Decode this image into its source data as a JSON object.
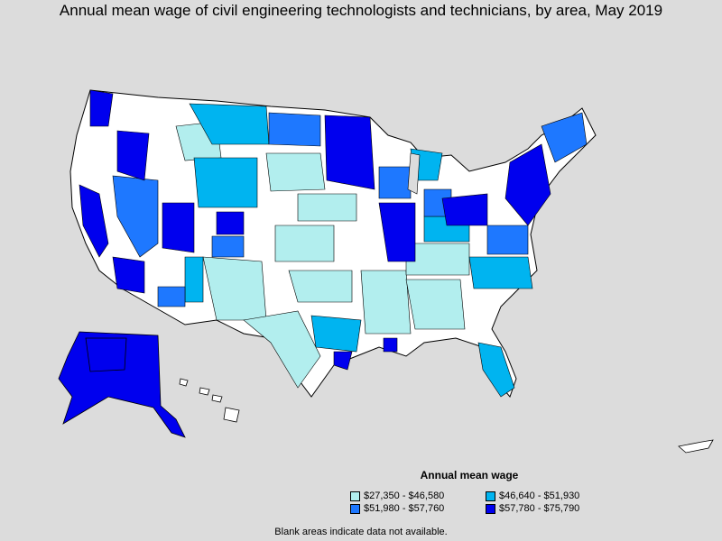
{
  "title": "Annual mean wage of civil engineering technologists and technicians, by area, May 2019",
  "legend": {
    "title": "Annual mean wage",
    "items": [
      {
        "label": "$27,350 - $46,580",
        "color": "#b2eeee"
      },
      {
        "label": "$46,640 - $51,930",
        "color": "#00b4f0"
      },
      {
        "label": "$51,980 - $57,760",
        "color": "#1e78ff"
      },
      {
        "label": "$57,780 - $75,790",
        "color": "#0000ee"
      }
    ]
  },
  "note": "Blank areas indicate data not available.",
  "colors": {
    "background": "#dcdcdc",
    "blank": "#ffffff",
    "tier1": "#b2eeee",
    "tier2": "#00b4f0",
    "tier3": "#1e78ff",
    "tier4": "#0000ee"
  }
}
